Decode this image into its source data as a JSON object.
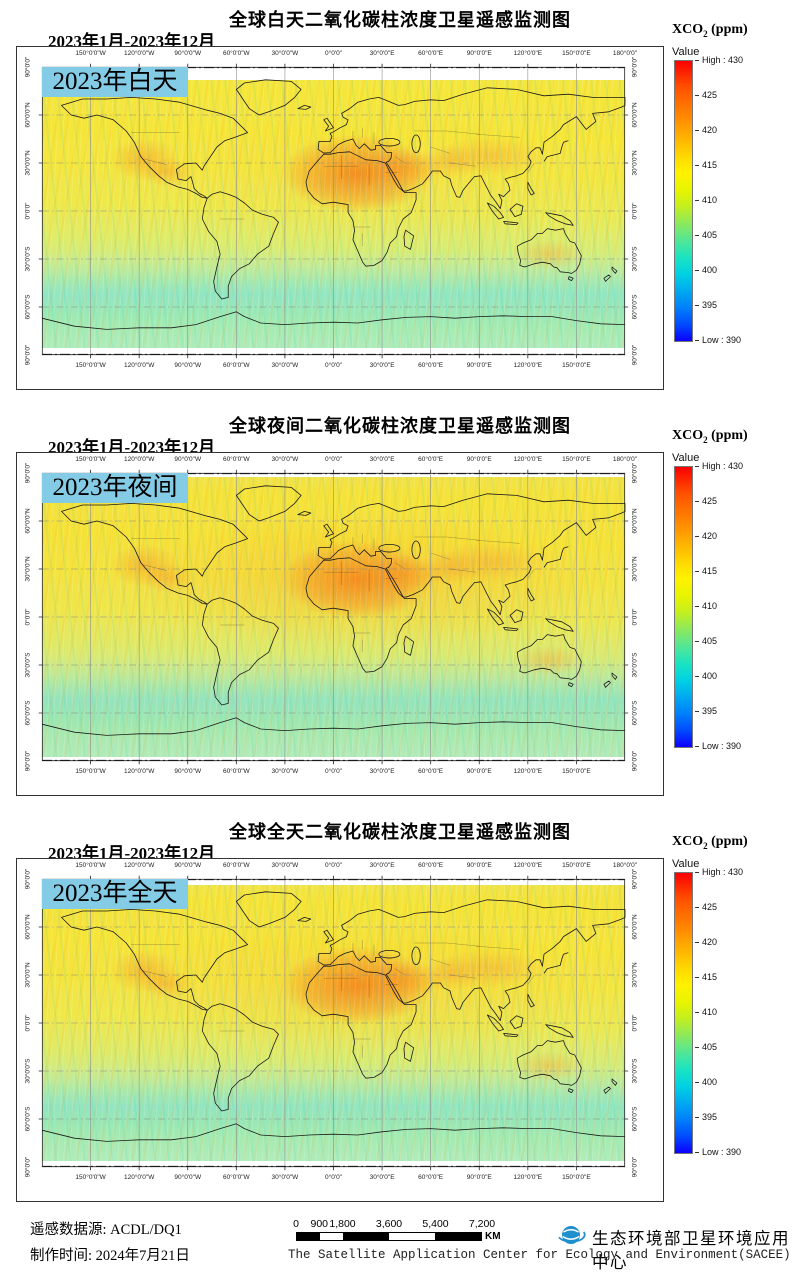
{
  "panels": [
    {
      "title": "全球白天二氧化碳柱浓度卫星遥感监测图",
      "date_range": "2023年1月-2023年12月",
      "caption": "2023年白天"
    },
    {
      "title": "全球夜间二氧化碳柱浓度卫星遥感监测图",
      "date_range": "2023年1月-2023年12月",
      "caption": "2023年夜间"
    },
    {
      "title": "全球全天二氧化碳柱浓度卫星遥感监测图",
      "date_range": "2023年1月-2023年12月",
      "caption": "2023年全天"
    }
  ],
  "axis": {
    "lon_top": [
      {
        "t": "150°0'0\"W",
        "p": 8.333
      },
      {
        "t": "120°0'0\"W",
        "p": 16.667
      },
      {
        "t": "90°0'0\"W",
        "p": 25
      },
      {
        "t": "60°0'0\"W",
        "p": 33.333
      },
      {
        "t": "30°0'0\"W",
        "p": 41.667
      },
      {
        "t": "0°0'0\"",
        "p": 50
      },
      {
        "t": "30°0'0\"E",
        "p": 58.333
      },
      {
        "t": "60°0'0\"E",
        "p": 66.667
      },
      {
        "t": "90°0'0\"E",
        "p": 75
      },
      {
        "t": "120°0'0\"E",
        "p": 83.333
      },
      {
        "t": "150°0'0\"E",
        "p": 91.667
      },
      {
        "t": "180°0'0\"",
        "p": 100
      }
    ],
    "lon_bottom": [
      {
        "t": "150°0'0\"W",
        "p": 8.333
      },
      {
        "t": "120°0'0\"W",
        "p": 16.667
      },
      {
        "t": "90°0'0\"W",
        "p": 25
      },
      {
        "t": "60°0'0\"W",
        "p": 33.333
      },
      {
        "t": "30°0'0\"W",
        "p": 41.667
      },
      {
        "t": "0°0'0\"",
        "p": 50
      },
      {
        "t": "30°0'0\"E",
        "p": 58.333
      },
      {
        "t": "60°0'0\"E",
        "p": 66.667
      },
      {
        "t": "90°0'0\"E",
        "p": 75
      },
      {
        "t": "120°0'0\"E",
        "p": 83.333
      },
      {
        "t": "150°0'0\"E",
        "p": 91.667
      }
    ],
    "lat": [
      {
        "t": "90°0'0\"",
        "p": 0
      },
      {
        "t": "60°0'0\"N",
        "p": 16.667
      },
      {
        "t": "30°0'0\"N",
        "p": 33.333
      },
      {
        "t": "0°0'0\"",
        "p": 50
      },
      {
        "t": "30°0'0\"S",
        "p": 66.667
      },
      {
        "t": "60°0'0\"S",
        "p": 83.333
      },
      {
        "t": "90°0'0\"",
        "p": 100
      }
    ]
  },
  "legend": {
    "title_main": "XCO",
    "title_sub": "2",
    "title_unit": " (ppm)",
    "value_label": "Value",
    "color_high": "#ff0000",
    "color_low": "#0000ff",
    "ticks": [
      {
        "t": "High : 430",
        "p": 0
      },
      {
        "t": "425",
        "p": 12.5
      },
      {
        "t": "420",
        "p": 25
      },
      {
        "t": "415",
        "p": 37.5
      },
      {
        "t": "410",
        "p": 50
      },
      {
        "t": "405",
        "p": 62.5
      },
      {
        "t": "400",
        "p": 75
      },
      {
        "t": "395",
        "p": 87.5
      },
      {
        "t": "Low : 390",
        "p": 100
      }
    ]
  },
  "overlay": {
    "caption_bg": "#84cbe6"
  },
  "footer": {
    "source_label": "遥感数据源: ACDL/DQ1",
    "made_label": "制作时间: 2024年7月21日",
    "scalebar": {
      "labels": [
        {
          "t": "0",
          "p": 0
        },
        {
          "t": "900",
          "p": 12.5
        },
        {
          "t": "1,800",
          "p": 25
        },
        {
          "t": "3,600",
          "p": 50
        },
        {
          "t": "5,400",
          "p": 75
        },
        {
          "t": "7,200",
          "p": 100
        }
      ],
      "unit": "KM"
    },
    "org_cn": "生态环境部卫星环境应用中心",
    "org_en": "The Satellite Application Center for Ecology and Environment(SACEE)"
  },
  "chart_data": [
    {
      "type": "heatmap",
      "projection": "equirectangular world map",
      "title": "全球白天二氧化碳柱浓度卫星遥感监测图",
      "period": "2023年1月-2023年12月",
      "caption": "2023年白天",
      "variable": "XCO2",
      "unit": "ppm",
      "scale": {
        "min": 390,
        "max": 430,
        "colorbar_ticks": [
          430,
          425,
          420,
          415,
          410,
          405,
          400,
          395,
          390
        ]
      },
      "lon_ticks_deg": [
        -150,
        -120,
        -90,
        -60,
        -30,
        0,
        30,
        60,
        90,
        120,
        150,
        180
      ],
      "lat_ticks_deg": [
        90,
        60,
        30,
        0,
        -30,
        -60,
        -90
      ],
      "reading_estimate_ppm": {
        "northern_mid_latitudes": 417,
        "tropics": 415,
        "southern_ocean": 406,
        "hotspots": 420
      },
      "hotspot_regions": [
        "Sahara/Arabia",
        "Central Asia / West China",
        "Southwest North America"
      ]
    },
    {
      "type": "heatmap",
      "projection": "equirectangular world map",
      "title": "全球夜间二氧化碳柱浓度卫星遥感监测图",
      "period": "2023年1月-2023年12月",
      "caption": "2023年夜间",
      "variable": "XCO2",
      "unit": "ppm",
      "scale": {
        "min": 390,
        "max": 430,
        "colorbar_ticks": [
          430,
          425,
          420,
          415,
          410,
          405,
          400,
          395,
          390
        ]
      },
      "lon_ticks_deg": [
        -150,
        -120,
        -90,
        -60,
        -30,
        0,
        30,
        60,
        90,
        120,
        150,
        180
      ],
      "lat_ticks_deg": [
        90,
        60,
        30,
        0,
        -30,
        -60,
        -90
      ],
      "reading_estimate_ppm": {
        "northern_mid_latitudes": 418,
        "tropics": 416,
        "southern_ocean": 407,
        "hotspots": 421
      },
      "hotspot_regions": [
        "Sahara/Arabia",
        "Mexico/Southwest US",
        "Australia interior",
        "East Asia"
      ]
    },
    {
      "type": "heatmap",
      "projection": "equirectangular world map",
      "title": "全球全天二氧化碳柱浓度卫星遥感监测图",
      "period": "2023年1月-2023年12月",
      "caption": "2023年全天",
      "variable": "XCO2",
      "unit": "ppm",
      "scale": {
        "min": 390,
        "max": 430,
        "colorbar_ticks": [
          430,
          425,
          420,
          415,
          410,
          405,
          400,
          395,
          390
        ]
      },
      "lon_ticks_deg": [
        -150,
        -120,
        -90,
        -60,
        -30,
        0,
        30,
        60,
        90,
        120,
        150,
        180
      ],
      "lat_ticks_deg": [
        90,
        60,
        30,
        0,
        -30,
        -60,
        -90
      ],
      "reading_estimate_ppm": {
        "northern_mid_latitudes": 417,
        "tropics": 415,
        "southern_ocean": 406,
        "hotspots": 420
      },
      "hotspot_regions": [
        "Sahara/Arabia",
        "Central Asia / West China",
        "Southwest North America"
      ]
    }
  ]
}
